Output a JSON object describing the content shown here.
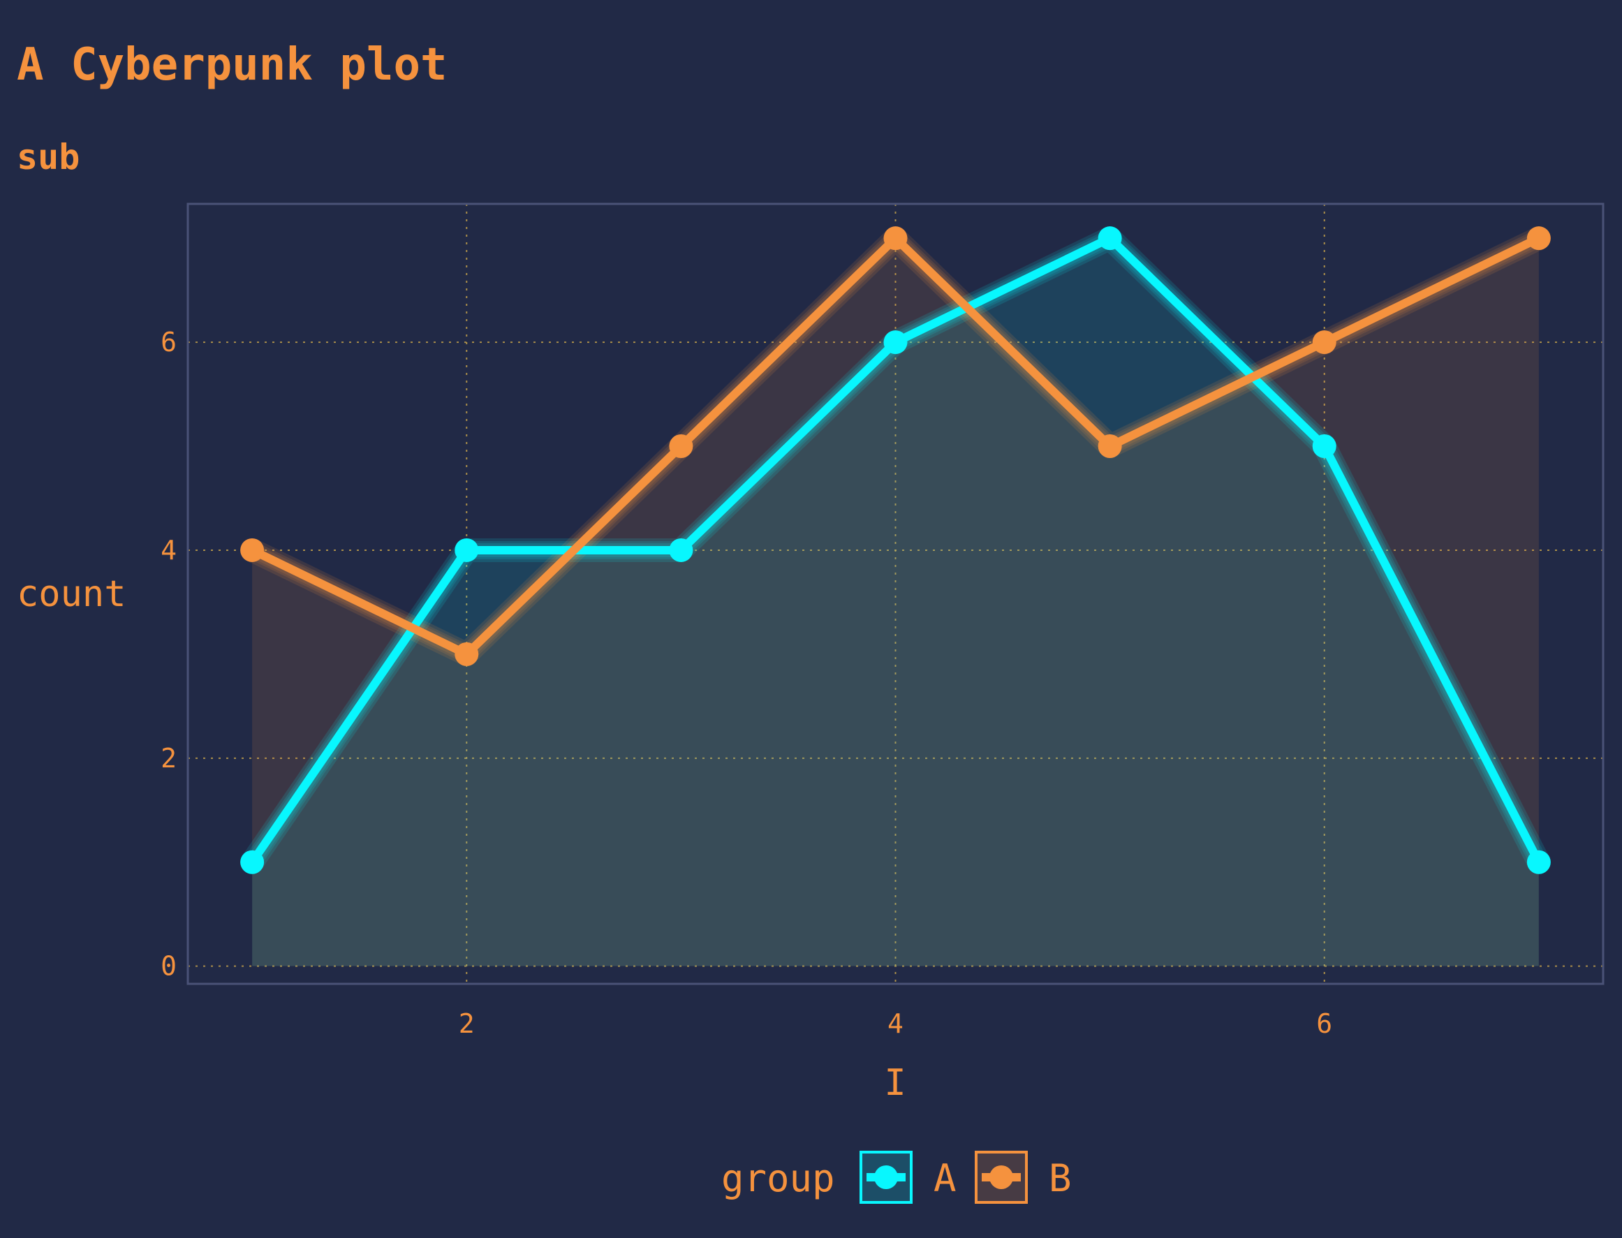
{
  "chart_data": {
    "type": "line",
    "title": "A Cyberpunk plot",
    "subtitle": "sub",
    "xlabel": "I",
    "ylabel": "count",
    "x": [
      1,
      2,
      3,
      4,
      5,
      6,
      7
    ],
    "xlim": [
      0.7,
      7.3
    ],
    "ylim": [
      -0.17,
      7.33
    ],
    "x_ticks": [
      2,
      4,
      6
    ],
    "y_ticks": [
      0,
      2,
      4,
      6
    ],
    "grid": true,
    "legend": {
      "title": "group",
      "position": "bottom"
    },
    "series": [
      {
        "name": "A",
        "color": "#08F7FE",
        "values": [
          1,
          4,
          4,
          6,
          7,
          5,
          1
        ]
      },
      {
        "name": "B",
        "color": "#F5923E",
        "values": [
          4,
          3,
          5,
          7,
          5,
          6,
          7
        ]
      }
    ]
  },
  "colors": {
    "background": "#212946",
    "text": "#F5923E",
    "grid": "#C2A04B",
    "panel_border": "#4A5277"
  }
}
